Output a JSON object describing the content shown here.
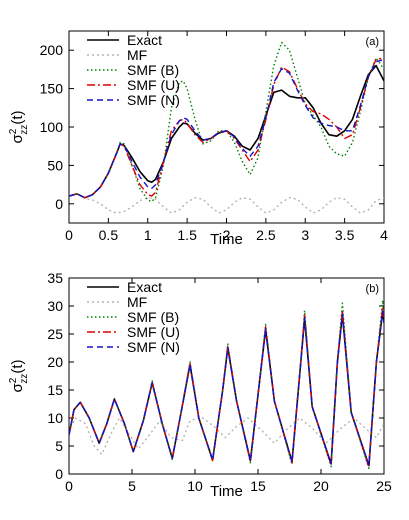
{
  "chart_data": [
    {
      "type": "line",
      "panel_label": "(a)",
      "xlabel": "Time",
      "ylabel_base": "σ",
      "ylabel_sup": "2",
      "ylabel_sub": "zz",
      "ylabel_tail": "(t)",
      "xlim": [
        0,
        4
      ],
      "ylim": [
        -25,
        225
      ],
      "xticks": [
        0,
        0.5,
        1,
        1.5,
        2,
        2.5,
        3,
        3.5,
        4
      ],
      "xtick_labels": [
        "0",
        "0.5",
        "1",
        "1.5",
        "2",
        "2.5",
        "3",
        "3.5",
        "4"
      ],
      "yticks": [
        0,
        50,
        100,
        150,
        200
      ],
      "ytick_labels": [
        "0",
        "50",
        "100",
        "150",
        "200"
      ],
      "legend_position": "top-left",
      "series": [
        {
          "name": "Exact",
          "color": "#000000",
          "dash": "",
          "x": [
            0,
            0.1,
            0.2,
            0.3,
            0.4,
            0.5,
            0.6,
            0.65,
            0.7,
            0.8,
            0.9,
            1.0,
            1.05,
            1.1,
            1.2,
            1.3,
            1.4,
            1.45,
            1.5,
            1.6,
            1.7,
            1.8,
            1.9,
            2.0,
            2.1,
            2.2,
            2.3,
            2.4,
            2.5,
            2.6,
            2.7,
            2.8,
            2.9,
            3.0,
            3.1,
            3.2,
            3.3,
            3.4,
            3.5,
            3.6,
            3.7,
            3.8,
            3.9,
            4.0
          ],
          "y": [
            10,
            13,
            8,
            12,
            22,
            40,
            65,
            78,
            76,
            60,
            42,
            30,
            28,
            32,
            55,
            85,
            100,
            105,
            104,
            92,
            83,
            85,
            92,
            95,
            88,
            75,
            70,
            85,
            115,
            145,
            148,
            140,
            138,
            138,
            125,
            105,
            90,
            88,
            95,
            110,
            140,
            168,
            180,
            160
          ]
        },
        {
          "name": "MF",
          "color": "#b4b4b4",
          "dash": "2,3",
          "x": [
            0,
            0.1,
            0.2,
            0.3,
            0.4,
            0.5,
            0.6,
            0.7,
            0.8,
            0.9,
            1.0,
            1.1,
            1.2,
            1.3,
            1.4,
            1.5,
            1.6,
            1.7,
            1.8,
            1.9,
            2.0,
            2.1,
            2.2,
            2.3,
            2.4,
            2.5,
            2.6,
            2.7,
            2.8,
            2.9,
            3.0,
            3.1,
            3.2,
            3.3,
            3.4,
            3.5,
            3.6,
            3.7,
            3.8,
            3.9,
            4.0
          ],
          "y": [
            10,
            13,
            7,
            5,
            0,
            -8,
            -12,
            -10,
            -4,
            4,
            8,
            6,
            -4,
            -12,
            -8,
            2,
            8,
            6,
            -4,
            -12,
            -8,
            2,
            8,
            6,
            -4,
            -12,
            -8,
            2,
            8,
            6,
            -4,
            -12,
            -8,
            2,
            8,
            6,
            -4,
            -12,
            -8,
            4,
            8
          ]
        },
        {
          "name": "SMF (B)",
          "color": "#008000",
          "dash": "1.5,2.5",
          "x": [
            0,
            0.1,
            0.2,
            0.3,
            0.4,
            0.5,
            0.6,
            0.65,
            0.7,
            0.8,
            0.9,
            1.0,
            1.05,
            1.1,
            1.2,
            1.3,
            1.4,
            1.45,
            1.5,
            1.6,
            1.7,
            1.8,
            1.9,
            2.0,
            2.1,
            2.2,
            2.3,
            2.4,
            2.5,
            2.6,
            2.7,
            2.8,
            2.9,
            3.0,
            3.1,
            3.2,
            3.3,
            3.4,
            3.5,
            3.6,
            3.7,
            3.8,
            3.9,
            4.0
          ],
          "y": [
            10,
            13,
            8,
            12,
            22,
            40,
            65,
            80,
            78,
            50,
            20,
            5,
            3,
            8,
            50,
            125,
            158,
            160,
            150,
            110,
            78,
            82,
            95,
            95,
            80,
            55,
            38,
            60,
            120,
            180,
            210,
            200,
            165,
            130,
            115,
            100,
            75,
            65,
            62,
            80,
            120,
            165,
            190,
            175
          ]
        },
        {
          "name": "SMF (U)",
          "color": "#dd0000",
          "dash": "8,3,2,3",
          "x": [
            0,
            0.1,
            0.2,
            0.3,
            0.4,
            0.5,
            0.6,
            0.65,
            0.7,
            0.8,
            0.9,
            1.0,
            1.05,
            1.1,
            1.2,
            1.3,
            1.4,
            1.45,
            1.5,
            1.6,
            1.7,
            1.8,
            1.9,
            2.0,
            2.1,
            2.2,
            2.3,
            2.4,
            2.5,
            2.6,
            2.7,
            2.8,
            2.9,
            3.0,
            3.1,
            3.2,
            3.3,
            3.4,
            3.5,
            3.6,
            3.7,
            3.8,
            3.9,
            4.0
          ],
          "y": [
            10,
            13,
            8,
            12,
            22,
            40,
            65,
            78,
            75,
            50,
            25,
            12,
            10,
            15,
            55,
            95,
            108,
            110,
            105,
            90,
            80,
            85,
            93,
            95,
            85,
            70,
            55,
            70,
            110,
            155,
            178,
            172,
            150,
            130,
            120,
            117,
            110,
            100,
            85,
            90,
            125,
            165,
            188,
            190
          ]
        },
        {
          "name": "SMF (N)",
          "color": "#1414cc",
          "dash": "6,4",
          "x": [
            0,
            0.1,
            0.2,
            0.3,
            0.4,
            0.5,
            0.6,
            0.65,
            0.7,
            0.8,
            0.9,
            1.0,
            1.05,
            1.1,
            1.2,
            1.3,
            1.4,
            1.45,
            1.5,
            1.6,
            1.7,
            1.8,
            1.9,
            2.0,
            2.1,
            2.2,
            2.3,
            2.4,
            2.5,
            2.6,
            2.7,
            2.8,
            2.9,
            3.0,
            3.1,
            3.2,
            3.3,
            3.4,
            3.5,
            3.6,
            3.7,
            3.8,
            3.9,
            4.0
          ],
          "y": [
            10,
            13,
            8,
            12,
            22,
            40,
            65,
            78,
            76,
            55,
            35,
            22,
            20,
            25,
            55,
            90,
            108,
            112,
            110,
            95,
            83,
            85,
            93,
            95,
            87,
            72,
            62,
            75,
            112,
            158,
            176,
            170,
            148,
            128,
            112,
            105,
            102,
            100,
            95,
            95,
            128,
            165,
            185,
            188
          ]
        }
      ]
    },
    {
      "type": "line",
      "panel_label": "(b)",
      "xlabel": "Time",
      "ylabel_base": "σ",
      "ylabel_sup": "2",
      "ylabel_sub": "zz",
      "ylabel_tail": "(t)",
      "xlim": [
        0,
        25
      ],
      "ylim": [
        0,
        35
      ],
      "xticks": [
        0,
        5,
        10,
        15,
        20,
        25
      ],
      "xtick_labels": [
        "0",
        "5",
        "10",
        "15",
        "20",
        "25"
      ],
      "yticks": [
        0,
        5,
        10,
        15,
        20,
        25,
        30,
        35
      ],
      "ytick_labels": [
        "0",
        "5",
        "10",
        "15",
        "20",
        "25",
        "30",
        "35"
      ],
      "legend_position": "top-left",
      "series": [
        {
          "name": "Exact",
          "color": "#000000",
          "dash": "",
          "x": [
            0,
            0.4,
            0.9,
            1.6,
            2.4,
            3.0,
            3.6,
            4.4,
            5.1,
            5.9,
            6.6,
            7.4,
            8.2,
            8.9,
            9.6,
            10.3,
            11.4,
            12.2,
            12.6,
            13.3,
            14.4,
            15.2,
            15.6,
            16.3,
            17.7,
            18.4,
            18.7,
            19.3,
            20.8,
            21.3,
            21.7,
            22.4,
            23.8,
            24.4,
            24.9,
            25.0
          ],
          "y": [
            7,
            11.5,
            12.8,
            10,
            5.5,
            9,
            13.4,
            9,
            4,
            9.5,
            16.3,
            9,
            2.8,
            11,
            19.5,
            10,
            2.5,
            15,
            22.5,
            13,
            2.4,
            18,
            25.8,
            13,
            2.2,
            20,
            27.8,
            12,
            1.8,
            20,
            28.5,
            11,
            1.5,
            20,
            29,
            27
          ]
        },
        {
          "name": "MF",
          "color": "#b4b4b4",
          "dash": "2,3",
          "x": [
            0,
            0.5,
            1.3,
            2.0,
            2.6,
            3.4,
            4.0,
            4.8,
            5.5,
            6.4,
            7.2,
            8.1,
            9.0,
            9.6,
            10.5,
            11.5,
            12.4,
            13.3,
            14.2,
            15.2,
            16.3,
            17.3,
            18.3,
            19.4,
            20.4,
            21.5,
            22.6,
            23.6,
            24.4,
            25.0
          ],
          "y": [
            7.5,
            10,
            9,
            5,
            3.5,
            7.5,
            10,
            7,
            4.5,
            7,
            9.5,
            6.5,
            6,
            9.5,
            10.2,
            8.5,
            6.5,
            8.5,
            10,
            8,
            5.5,
            8,
            10,
            8,
            5.5,
            8,
            10,
            8,
            6.5,
            9
          ]
        },
        {
          "name": "SMF (B)",
          "color": "#008000",
          "dash": "1.5,2.5",
          "x": [
            0,
            0.4,
            0.9,
            1.6,
            2.4,
            3.0,
            3.6,
            4.4,
            5.1,
            5.9,
            6.6,
            7.4,
            8.2,
            8.9,
            9.6,
            10.3,
            11.4,
            12.2,
            12.6,
            13.3,
            14.4,
            15.2,
            15.6,
            16.3,
            17.7,
            18.4,
            18.7,
            19.3,
            20.8,
            21.3,
            21.7,
            22.4,
            23.8,
            24.4,
            24.9,
            25.0
          ],
          "y": [
            7,
            11.5,
            12.8,
            10,
            5.5,
            9,
            13.4,
            9,
            4,
            9.5,
            16.6,
            9,
            2.6,
            11,
            20,
            10,
            2.3,
            15,
            23.2,
            13,
            2,
            18,
            26.7,
            13,
            1.7,
            20,
            29.2,
            12,
            1.3,
            20,
            30.5,
            11,
            1,
            20,
            31,
            29
          ]
        },
        {
          "name": "SMF (U)",
          "color": "#dd0000",
          "dash": "8,3,2,3",
          "x": [
            0,
            0.4,
            0.9,
            1.6,
            2.4,
            3.0,
            3.6,
            4.4,
            5.1,
            5.9,
            6.6,
            7.4,
            8.2,
            8.9,
            9.6,
            10.3,
            11.4,
            12.2,
            12.6,
            13.3,
            14.4,
            15.2,
            15.6,
            16.3,
            17.7,
            18.4,
            18.7,
            19.3,
            20.8,
            21.3,
            21.7,
            22.4,
            23.8,
            24.4,
            24.9,
            25.0
          ],
          "y": [
            7,
            11.5,
            12.8,
            10,
            5.5,
            9,
            13.4,
            9,
            4,
            9.5,
            16.4,
            9,
            2.7,
            11,
            19.8,
            10,
            2.4,
            15,
            22.9,
            13,
            2.2,
            18,
            26.3,
            13,
            2,
            20,
            28.4,
            12,
            1.6,
            20,
            29.2,
            11,
            1.2,
            20,
            29.8,
            28
          ]
        },
        {
          "name": "SMF (N)",
          "color": "#1414cc",
          "dash": "6,4",
          "x": [
            0,
            0.4,
            0.9,
            1.6,
            2.4,
            3.0,
            3.6,
            4.4,
            5.1,
            5.9,
            6.6,
            7.4,
            8.2,
            8.9,
            9.6,
            10.3,
            11.4,
            12.2,
            12.6,
            13.3,
            14.4,
            15.2,
            15.6,
            16.3,
            17.7,
            18.4,
            18.7,
            19.3,
            20.8,
            21.3,
            21.7,
            22.4,
            23.8,
            24.4,
            24.9,
            25.0
          ],
          "y": [
            7,
            11.5,
            12.8,
            10,
            5.5,
            9,
            13.4,
            9,
            4,
            9.5,
            16.3,
            9,
            2.8,
            11,
            19.6,
            10,
            2.5,
            15,
            22.6,
            13,
            2.3,
            18,
            25.9,
            13,
            2.1,
            20,
            27.9,
            12,
            1.8,
            20,
            28.6,
            11,
            1.5,
            20,
            29.1,
            27
          ]
        }
      ]
    }
  ]
}
